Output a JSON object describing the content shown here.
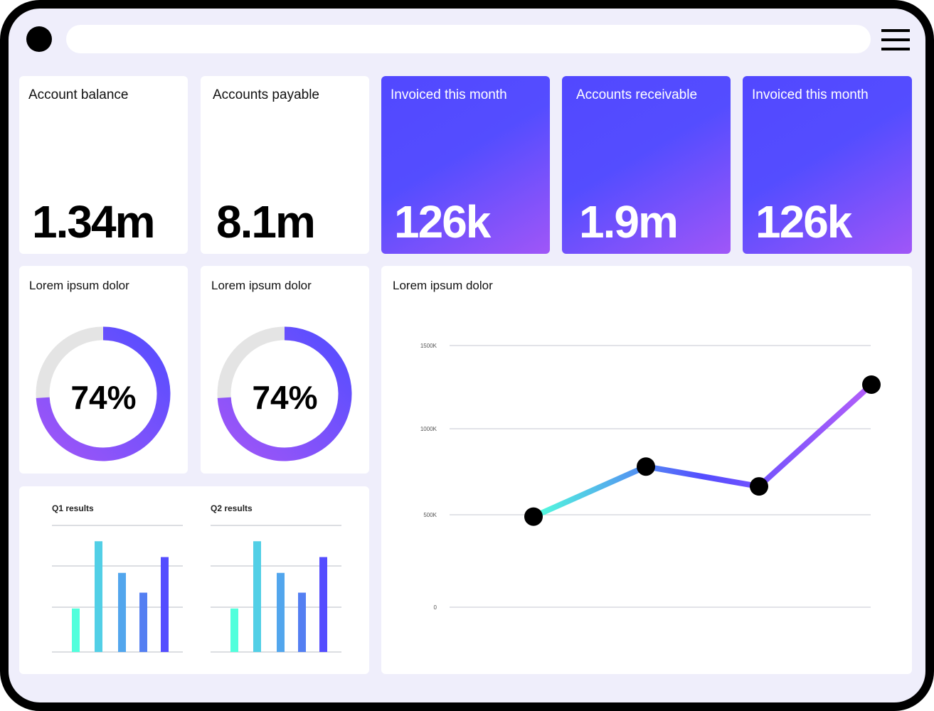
{
  "header": {
    "search": {
      "placeholder": "",
      "value": ""
    },
    "avatar_icon": "avatar-circle",
    "menu_icon": "hamburger-icon"
  },
  "kpis": [
    {
      "title": "Account balance",
      "value": "1.34m",
      "style": "white"
    },
    {
      "title": "Accounts payable",
      "value": "8.1m",
      "style": "white"
    },
    {
      "title": "Invoiced this month",
      "value": "126k",
      "style": "gradient"
    },
    {
      "title": "Accounts receivable",
      "value": "1.9m",
      "style": "gradient"
    },
    {
      "title": "Invoiced this month",
      "value": "126k",
      "style": "gradient"
    }
  ],
  "donuts": [
    {
      "title": "Lorem ipsum dolor",
      "label": "74%",
      "percent": 74
    },
    {
      "title": "Lorem ipsum dolor",
      "label": "74%",
      "percent": 74
    }
  ],
  "colors": {
    "accent": "#544dff",
    "accent2": "#a056f7",
    "teal": "#52ffdc",
    "track": "#e4e4e4",
    "background": "#efeefb"
  },
  "chart_data": [
    {
      "type": "bar",
      "title": "Q1 results",
      "values": [
        1.1,
        2.8,
        2.0,
        1.5,
        2.4
      ],
      "ylim": [
        0,
        3.2
      ],
      "grid": true,
      "colors": [
        "#52ffdc",
        "#52cfe6",
        "#52a6ed",
        "#547ff2",
        "#544dff"
      ]
    },
    {
      "type": "bar",
      "title": "Q2 results",
      "values": [
        1.1,
        2.8,
        2.0,
        1.5,
        2.4
      ],
      "ylim": [
        0,
        3.2
      ],
      "grid": true,
      "colors": [
        "#52ffdc",
        "#52cfe6",
        "#52a6ed",
        "#547ff2",
        "#544dff"
      ]
    },
    {
      "type": "line",
      "title": "Lorem ipsum dolor",
      "y": [
        490,
        780,
        665,
        1265
      ],
      "yticks": [
        0,
        500,
        1000,
        1500
      ],
      "ytick_labels": [
        "0",
        "500K",
        "1000K",
        "1500K"
      ],
      "ylim": [
        0,
        1500
      ],
      "grid": true,
      "gradient": [
        "#52ffdc",
        "#544dff",
        "#b35ef9"
      ]
    }
  ]
}
